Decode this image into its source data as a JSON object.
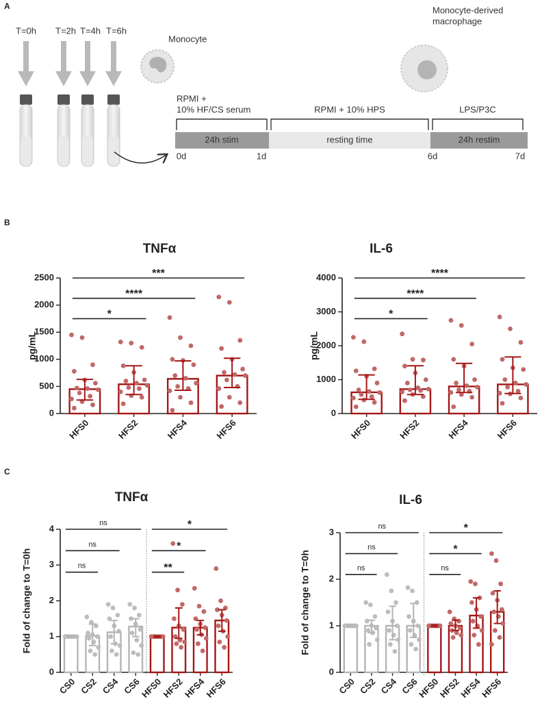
{
  "panel_labels": [
    "A",
    "B",
    "C"
  ],
  "diagram": {
    "timepoints": [
      "T=0h",
      "T=2h",
      "T=4h",
      "T=6h"
    ],
    "monocyte": "Monocyte",
    "macrophage": [
      "Monocyte-derived",
      "macrophage"
    ],
    "phases": [
      {
        "condition": [
          "RPMI +",
          "10% HF/CS serum"
        ],
        "label": "24h stim"
      },
      {
        "condition": [
          "RPMI + 10% HPS"
        ],
        "label": "resting time"
      },
      {
        "condition": [
          "LPS/P3C"
        ],
        "label": "24h restim"
      }
    ],
    "days": [
      "0d",
      "1d",
      "6d",
      "7d"
    ]
  },
  "chart_data": [
    {
      "type": "bar",
      "title": "TNFα",
      "y_label": "pg/mL",
      "categories": [
        "HFS0",
        "HFS2",
        "HFS4",
        "HFS6"
      ],
      "values": [
        450,
        540,
        640,
        700
      ],
      "error_low": [
        250,
        350,
        430,
        480
      ],
      "error_high": [
        630,
        880,
        970,
        1020
      ],
      "points": [
        [
          1450,
          1400,
          900,
          780,
          620,
          560,
          470,
          460,
          440,
          380,
          320,
          270,
          220,
          160,
          100
        ],
        [
          1320,
          1300,
          1220,
          880,
          760,
          620,
          600,
          560,
          520,
          480,
          460,
          400,
          330,
          300,
          180
        ],
        [
          1770,
          1400,
          1250,
          1000,
          980,
          900,
          700,
          650,
          560,
          500,
          460,
          420,
          300,
          200,
          60
        ],
        [
          2150,
          2050,
          1350,
          1200,
          1000,
          820,
          760,
          720,
          700,
          620,
          500,
          460,
          300,
          200,
          130
        ]
      ],
      "colors": [
        "#a51515",
        "#a51515",
        "#a51515",
        "#a51515"
      ],
      "point_colors": [
        "#c06868",
        "#c06868",
        "#c06868",
        "#c06868"
      ],
      "ylim": [
        0,
        2500
      ],
      "yticks": [
        0,
        500,
        1000,
        1500,
        2000,
        2500
      ],
      "brackets": [
        {
          "from": "HFS0",
          "to": "HFS2",
          "label": "*"
        },
        {
          "from": "HFS0",
          "to": "HFS4",
          "label": "****"
        },
        {
          "from": "HFS0",
          "to": "HFS6",
          "label": "***"
        }
      ]
    },
    {
      "type": "bar",
      "title": "IL-6",
      "y_label": "pg/mL",
      "categories": [
        "HFS0",
        "HFS2",
        "HFS4",
        "HFS6"
      ],
      "values": [
        626,
        720,
        800,
        860
      ],
      "error_low": [
        420,
        560,
        620,
        590
      ],
      "error_high": [
        1140,
        1410,
        1480,
        1670
      ],
      "points": [
        [
          2250,
          2120,
          1320,
          1260,
          1100,
          900,
          700,
          650,
          620,
          560,
          500,
          460,
          400,
          330,
          200
        ],
        [
          2350,
          1600,
          1580,
          1400,
          1200,
          1000,
          900,
          760,
          720,
          700,
          680,
          640,
          560,
          500,
          380
        ],
        [
          2750,
          2600,
          2050,
          1600,
          1400,
          1000,
          900,
          820,
          780,
          700,
          660,
          620,
          560,
          480,
          200
        ],
        [
          2850,
          2500,
          2100,
          1600,
          1350,
          1300,
          1000,
          900,
          860,
          780,
          660,
          600,
          580,
          460,
          300
        ]
      ],
      "colors": [
        "#a51515",
        "#a51515",
        "#a51515",
        "#a51515"
      ],
      "point_colors": [
        "#c06868",
        "#c06868",
        "#c06868",
        "#c06868"
      ],
      "ylim": [
        0,
        4000
      ],
      "yticks": [
        0,
        1000,
        2000,
        3000,
        4000
      ],
      "brackets": [
        {
          "from": "HFS0",
          "to": "HFS2",
          "label": "*"
        },
        {
          "from": "HFS0",
          "to": "HFS4",
          "label": "****"
        },
        {
          "from": "HFS0",
          "to": "HFS6",
          "label": "****"
        }
      ]
    },
    {
      "type": "bar",
      "title": "TNFα",
      "y_label": "Fold of change to T=0h",
      "categories": [
        "CS0",
        "CS2",
        "CS4",
        "CS6",
        "HFS0",
        "HFS2",
        "HFS4",
        "HFS6"
      ],
      "values": [
        1.0,
        1.02,
        1.12,
        1.28,
        1.0,
        1.25,
        1.25,
        1.45
      ],
      "error_low": [
        0.98,
        0.75,
        0.8,
        1.0,
        0.98,
        0.95,
        1.05,
        1.15
      ],
      "error_high": [
        1.02,
        1.35,
        1.45,
        1.5,
        1.02,
        1.8,
        1.45,
        1.75
      ],
      "points": [
        [
          1,
          1,
          1,
          1,
          1,
          1,
          1,
          1,
          1,
          1,
          1,
          1
        ],
        [
          1.55,
          1.4,
          1.3,
          1.1,
          1.05,
          1.0,
          0.95,
          0.85,
          0.7,
          0.6,
          0.5
        ],
        [
          1.9,
          1.8,
          1.6,
          1.5,
          1.3,
          1.15,
          1.0,
          0.8,
          0.75,
          0.6,
          0.5
        ],
        [
          1.9,
          1.8,
          1.6,
          1.5,
          1.35,
          1.2,
          1.1,
          0.9,
          0.75,
          0.55,
          0.5
        ],
        [
          1,
          1,
          1,
          1,
          1,
          1,
          1,
          1,
          1,
          1,
          1,
          1
        ],
        [
          3.6,
          2.3,
          1.9,
          1.5,
          1.3,
          1.2,
          1.0,
          0.9,
          0.85,
          0.8,
          0.7
        ],
        [
          2.35,
          1.85,
          1.7,
          1.5,
          1.35,
          1.25,
          1.2,
          1.05,
          0.95,
          0.8,
          0.6
        ],
        [
          2.9,
          2.0,
          1.8,
          1.75,
          1.6,
          1.45,
          1.3,
          1.15,
          1.0,
          0.85,
          0.7
        ]
      ],
      "colors": [
        "#b4b4b4",
        "#b4b4b4",
        "#b4b4b4",
        "#b4b4b4",
        "#a51515",
        "#a51515",
        "#a51515",
        "#a51515"
      ],
      "point_colors": [
        "#bdbdbd",
        "#bdbdbd",
        "#bdbdbd",
        "#bdbdbd",
        "#c06868",
        "#c06868",
        "#c06868",
        "#c06868"
      ],
      "ylim": [
        0,
        4
      ],
      "yticks": [
        0,
        1,
        2,
        3,
        4
      ],
      "brackets": [
        {
          "from": "CS0",
          "to": "CS2",
          "label": "ns"
        },
        {
          "from": "CS0",
          "to": "CS4",
          "label": "ns"
        },
        {
          "from": "CS0",
          "to": "CS6",
          "label": "ns"
        },
        {
          "from": "HFS0",
          "to": "HFS2",
          "label": "**"
        },
        {
          "from": "HFS0",
          "to": "HFS4",
          "label": "*"
        },
        {
          "from": "HFS0",
          "to": "HFS6",
          "label": "*"
        }
      ]
    },
    {
      "type": "bar",
      "title": "IL-6",
      "y_label": "Fold of change to T=0h",
      "categories": [
        "CS0",
        "CS2",
        "CS4",
        "CS6",
        "HFS0",
        "HFS2",
        "HFS4",
        "HFS6"
      ],
      "values": [
        1.0,
        1.0,
        1.0,
        1.0,
        1.0,
        1.0,
        1.22,
        1.3
      ],
      "error_low": [
        0.98,
        0.85,
        0.7,
        0.75,
        0.98,
        0.9,
        0.95,
        1.05
      ],
      "error_high": [
        1.02,
        1.12,
        1.42,
        1.48,
        1.02,
        1.12,
        1.6,
        1.75
      ],
      "points": [
        [
          1,
          1,
          1,
          1,
          1,
          1,
          1,
          1,
          1,
          1,
          1,
          1
        ],
        [
          1.5,
          1.45,
          1.2,
          1.1,
          1.0,
          0.95,
          0.9,
          0.85,
          0.7,
          0.6
        ],
        [
          2.1,
          1.75,
          1.5,
          1.3,
          1.1,
          1.0,
          0.9,
          0.8,
          0.7,
          0.6,
          0.45
        ],
        [
          1.82,
          1.75,
          1.5,
          1.2,
          1.1,
          1.0,
          0.9,
          0.8,
          0.7,
          0.6,
          0.5
        ],
        [
          1,
          1,
          1,
          1,
          1,
          1,
          1,
          1,
          1,
          1,
          1,
          1
        ],
        [
          1.3,
          1.15,
          1.1,
          1.05,
          1.0,
          0.95,
          0.9,
          0.85,
          0.8,
          0.75
        ],
        [
          1.95,
          1.9,
          1.6,
          1.5,
          1.35,
          1.2,
          1.1,
          1.0,
          0.9,
          0.8,
          0.6
        ],
        [
          2.55,
          2.4,
          1.9,
          1.7,
          1.55,
          1.35,
          1.3,
          1.2,
          1.05,
          0.9,
          0.75,
          0.6
        ]
      ],
      "colors": [
        "#b4b4b4",
        "#b4b4b4",
        "#b4b4b4",
        "#b4b4b4",
        "#a51515",
        "#a51515",
        "#a51515",
        "#a51515"
      ],
      "point_colors": [
        "#bdbdbd",
        "#bdbdbd",
        "#bdbdbd",
        "#bdbdbd",
        "#c06868",
        "#c06868",
        "#c06868",
        "#c06868"
      ],
      "ylim": [
        0,
        3
      ],
      "yticks": [
        0,
        1,
        2,
        3
      ],
      "brackets": [
        {
          "from": "CS0",
          "to": "CS2",
          "label": "ns"
        },
        {
          "from": "CS0",
          "to": "CS4",
          "label": "ns"
        },
        {
          "from": "CS0",
          "to": "CS6",
          "label": "ns"
        },
        {
          "from": "HFS0",
          "to": "HFS2",
          "label": "ns"
        },
        {
          "from": "HFS0",
          "to": "HFS4",
          "label": "*"
        },
        {
          "from": "HFS0",
          "to": "HFS6",
          "label": "*"
        }
      ]
    }
  ]
}
